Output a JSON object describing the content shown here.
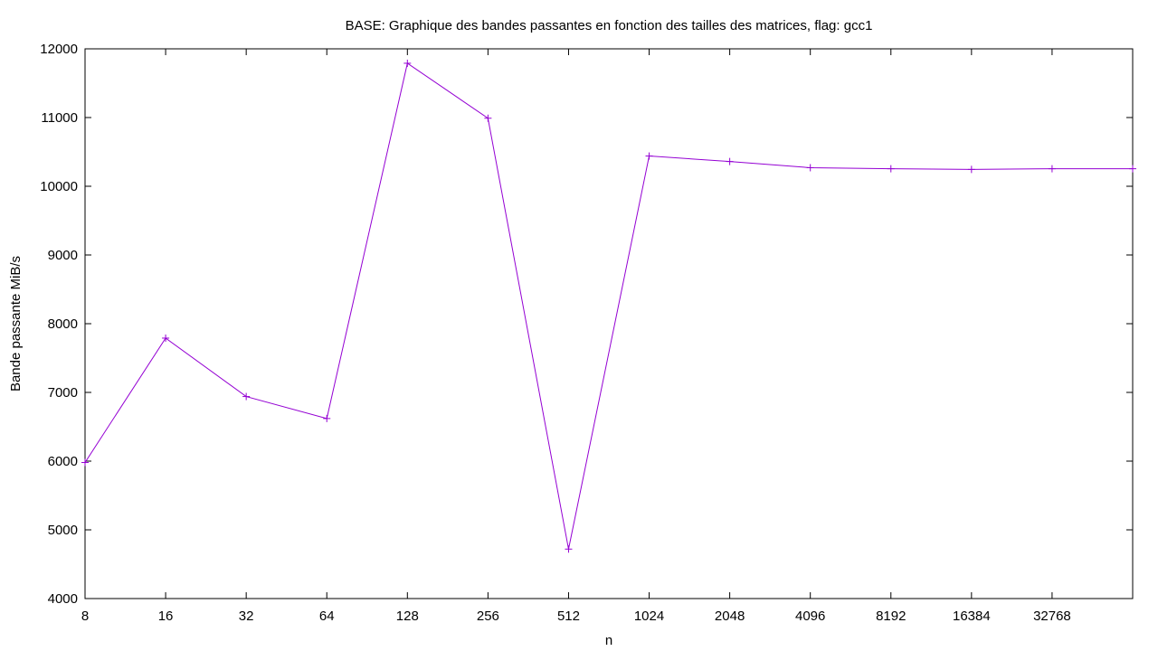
{
  "chart_data": {
    "type": "line",
    "title": "BASE: Graphique des bandes passantes en fonction des tailles des matrices, flag: gcc1",
    "xlabel": "n",
    "ylabel": "Bande passante MiB/s",
    "x_scale": "log2",
    "xlim": [
      8,
      65536
    ],
    "ylim": [
      4000,
      12000
    ],
    "x_ticks": [
      8,
      16,
      32,
      64,
      128,
      256,
      512,
      1024,
      2048,
      4096,
      8192,
      16384,
      32768
    ],
    "y_ticks": [
      4000,
      5000,
      6000,
      7000,
      8000,
      9000,
      10000,
      11000,
      12000
    ],
    "grid": false,
    "legend": "none",
    "marker": "plus",
    "series": [
      {
        "color": "#9400d3",
        "x": [
          8,
          16,
          32,
          64,
          128,
          256,
          512,
          1024,
          2048,
          4096,
          8192,
          16384,
          32768,
          65536
        ],
        "y": [
          5980,
          7790,
          6940,
          6620,
          11790,
          10990,
          4720,
          10440,
          10360,
          10270,
          10255,
          10245,
          10255,
          10255
        ]
      }
    ]
  }
}
